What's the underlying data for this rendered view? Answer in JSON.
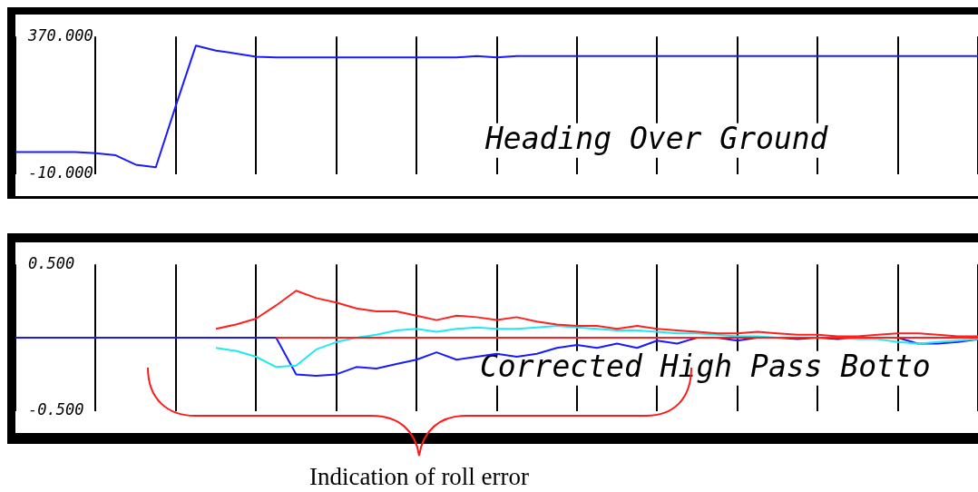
{
  "chart_data": [
    {
      "type": "line",
      "title": "Heading Over Ground",
      "categories": [
        null,
        null,
        null,
        null,
        null,
        null,
        null,
        null,
        null,
        null,
        null,
        null,
        null,
        null,
        null,
        null,
        null,
        null,
        null,
        null,
        null,
        null,
        null,
        null,
        null,
        null,
        null,
        null,
        null,
        null,
        null,
        null,
        null,
        null,
        null,
        null,
        null,
        null,
        null,
        null,
        null,
        null,
        null,
        null,
        null,
        null,
        null,
        null,
        null
      ],
      "series": [
        {
          "color": "#1a1aff",
          "values": [
            51,
            51,
            51,
            51,
            48,
            42,
            16,
            9,
            179,
            345,
            331,
            323,
            314,
            312,
            312,
            312,
            312,
            312,
            312,
            312,
            312,
            312,
            312,
            316,
            312,
            316,
            316,
            316,
            316,
            316,
            316,
            316,
            316,
            316,
            316,
            316,
            316,
            316,
            316,
            316,
            316,
            316,
            316,
            316,
            316,
            316,
            316,
            316,
            316
          ]
        }
      ],
      "ylim": [
        -10,
        370
      ],
      "yticks": [
        {
          "value": -10,
          "label": "-10.000"
        },
        {
          "value": 370,
          "label": "370.000"
        }
      ],
      "grid": "x",
      "tick_labels": "y"
    },
    {
      "type": "line",
      "title": "Corrected High Pass Botto",
      "annotations": [
        "Indication of roll error"
      ],
      "categories": [
        null,
        null,
        null,
        null,
        null,
        null,
        null,
        null,
        null,
        null,
        null,
        null,
        null,
        null,
        null,
        null,
        null,
        null,
        null,
        null,
        null,
        null,
        null,
        null,
        null,
        null,
        null,
        null,
        null,
        null,
        null,
        null,
        null,
        null,
        null,
        null,
        null,
        null,
        null,
        null,
        null,
        null,
        null,
        null,
        null,
        null,
        null,
        null,
        null
      ],
      "series": [
        {
          "color": "#ff2020",
          "values": [
            null,
            null,
            null,
            null,
            null,
            null,
            null,
            null,
            null,
            null,
            0.06,
            0.09,
            0.13,
            0.22,
            0.32,
            0.27,
            0.24,
            0.2,
            0.18,
            0.18,
            0.15,
            0.12,
            0.15,
            0.14,
            0.12,
            0.14,
            0.11,
            0.09,
            0.08,
            0.08,
            0.06,
            0.08,
            0.06,
            0.05,
            0.04,
            0.03,
            0.03,
            0.04,
            0.03,
            0.02,
            0.02,
            0.01,
            0.01,
            0.02,
            0.03,
            0.03,
            0.02,
            0.01,
            0.01
          ]
        },
        {
          "color": "#ff2020",
          "values": [
            null,
            null,
            null,
            null,
            null,
            null,
            null,
            null,
            null,
            null,
            null,
            null,
            null,
            0,
            0,
            0,
            0,
            0,
            0,
            0,
            0,
            0,
            0,
            0,
            0,
            0,
            0,
            0,
            0,
            0,
            0,
            0,
            0,
            0,
            0,
            0,
            0,
            0,
            0,
            0,
            0,
            0,
            0,
            0,
            0,
            0,
            0,
            0,
            0
          ]
        },
        {
          "color": "#22e8f0",
          "values": [
            null,
            null,
            null,
            null,
            null,
            null,
            null,
            null,
            null,
            null,
            -0.07,
            -0.09,
            -0.13,
            -0.2,
            -0.19,
            -0.08,
            -0.03,
            0,
            0.02,
            0.05,
            0.06,
            0.04,
            0.06,
            0.07,
            0.06,
            0.06,
            0.07,
            0.08,
            0.07,
            0.06,
            0.05,
            0.05,
            0.04,
            0.03,
            0.03,
            0.02,
            0.01,
            0.01,
            0,
            0,
            0,
            0,
            -0.01,
            -0.01,
            -0.03,
            -0.04,
            -0.03,
            -0.02,
            -0.01
          ]
        },
        {
          "color": "#1a1aff",
          "values": [
            0,
            0,
            0,
            0,
            0,
            0,
            0,
            0,
            0,
            0,
            0,
            0,
            0,
            0,
            -0.25,
            -0.26,
            -0.25,
            -0.2,
            -0.21,
            -0.18,
            -0.15,
            -0.1,
            -0.15,
            -0.13,
            -0.11,
            -0.13,
            -0.11,
            -0.07,
            -0.05,
            -0.07,
            -0.04,
            -0.07,
            -0.02,
            -0.04,
            0,
            0,
            -0.02,
            0,
            0,
            -0.01,
            0,
            -0.01,
            0,
            0,
            0,
            -0.04,
            -0.04,
            -0.03,
            -0.01
          ]
        }
      ],
      "ylim": [
        -0.5,
        0.5
      ],
      "yticks": [
        {
          "value": -0.5,
          "label": "-0.500"
        },
        {
          "value": 0.5,
          "label": "0.500"
        }
      ],
      "grid": "x",
      "tick_labels": "y"
    }
  ]
}
